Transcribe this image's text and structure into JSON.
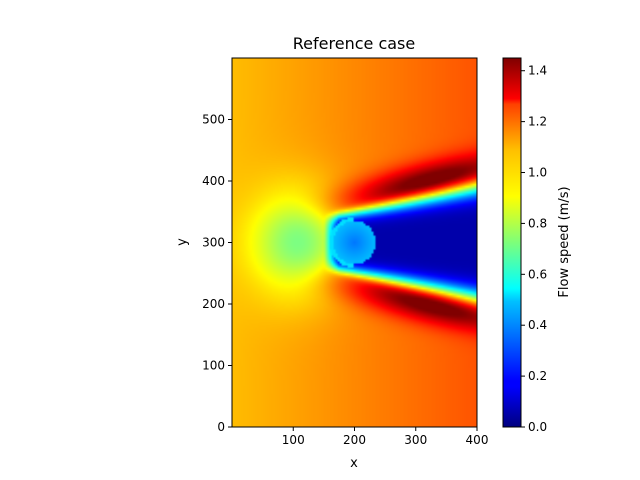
{
  "chart_data": {
    "type": "heatmap",
    "title": "Reference case",
    "xlabel": "x",
    "ylabel": "y",
    "xlim": [
      0,
      400
    ],
    "ylim": [
      0,
      600
    ],
    "xticks": [
      100,
      200,
      300,
      400
    ],
    "yticks": [
      0,
      100,
      200,
      300,
      400,
      500
    ],
    "grid": false,
    "colormap": "jet",
    "colorbar": {
      "label": "Flow speed (m/s)",
      "vmin": 0.0,
      "vmax": 1.45,
      "ticks": [
        "0.0",
        "0.2",
        "0.4",
        "0.6",
        "0.8",
        "1.0",
        "1.2",
        "1.4"
      ]
    },
    "field": {
      "description_of_values": "flow speed magnitude around a cylindrical obstacle",
      "obstacle_center": [
        200,
        300
      ],
      "obstacle_radius": 35,
      "freestream_speed": 1.05,
      "wake_speed": 0.05,
      "max_speed": 1.45
    }
  }
}
